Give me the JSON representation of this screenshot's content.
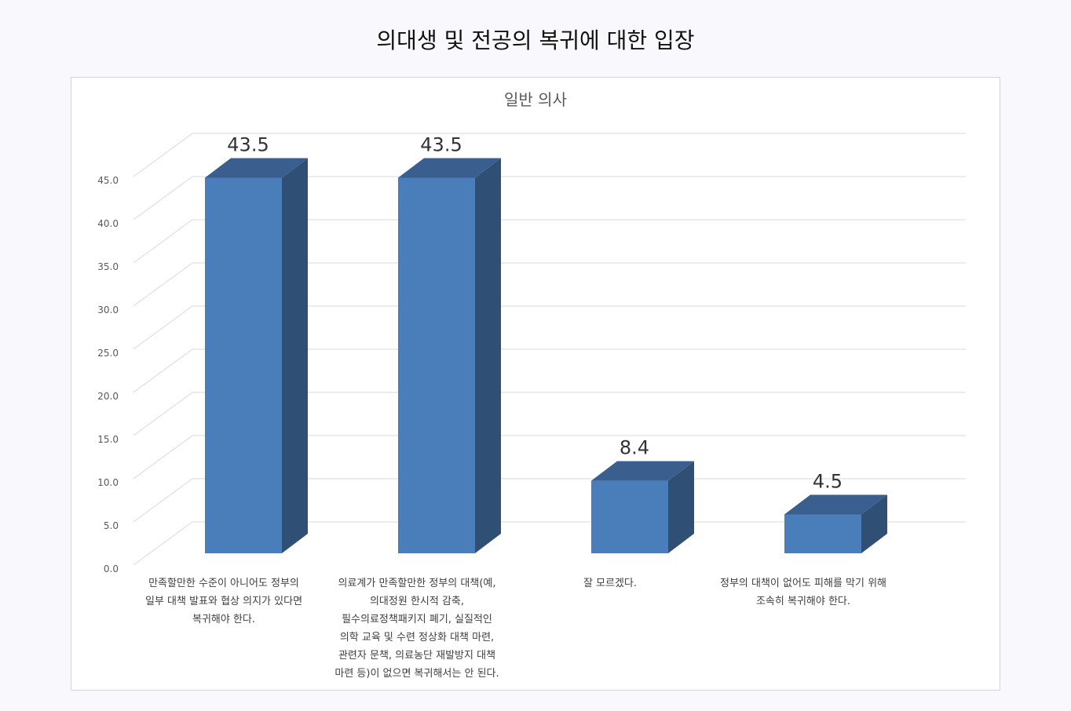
{
  "page": {
    "title": "의대생 및 전공의 복귀에 대한 입장"
  },
  "chart_data": {
    "type": "bar",
    "style": "3d-column",
    "title": "일반 의사",
    "xlabel": "",
    "ylabel": "",
    "ylim": [
      0,
      45
    ],
    "yticks": [
      "0.0",
      "5.0",
      "10.0",
      "15.0",
      "20.0",
      "25.0",
      "30.0",
      "35.0",
      "40.0",
      "45.0"
    ],
    "grid": true,
    "legend": "none",
    "categories": [
      "만족할만한 수준이 아니어도 정부의 일부 대책 발표와 협상 의지가 있다면 복귀해야 한다.",
      "의료계가 만족할만한 정부의 대책(예, 의대정원 한시적 감축, 필수의료정책패키지 폐기, 실질적인 의학 교육 및 수련 정상화 대책 마련, 관련자 문책, 의료농단 재발방지 대책 마련 등)이 없으면 복귀해서는 안 된다.",
      "잘 모르겠다.",
      "정부의 대책이 없어도 피해를 막기 위해 조속히 복귀해야 한다."
    ],
    "category_label_lines": [
      [
        "만족할만한 수준이 아니어도 정부의",
        "일부 대책 발표와 협상 의지가 있다면",
        "복귀해야 한다."
      ],
      [
        "의료계가 만족할만한 정부의 대책(예,",
        "의대정원 한시적 감축,",
        "필수의료정책패키지 폐기, 실질적인",
        "의학 교육 및 수련 정상화 대책 마련,",
        "관련자 문책, 의료농단 재발방지 대책",
        "마련 등)이 없으면 복귀해서는 안 된다."
      ],
      [
        "잘 모르겠다."
      ],
      [
        "정부의 대책이 없어도 피해를 막기 위해",
        "조속히 복귀해야 한다."
      ]
    ],
    "values": [
      43.5,
      43.5,
      8.4,
      4.5
    ],
    "data_labels": [
      "43.5",
      "43.5",
      "8.4",
      "4.5"
    ],
    "colors": {
      "front": "#4a7ebb",
      "side": "#2f4f75",
      "top": "#3a5f8e",
      "grid": "#d9d9d9",
      "axis_text": "#595959",
      "label_text": "#404040"
    }
  }
}
